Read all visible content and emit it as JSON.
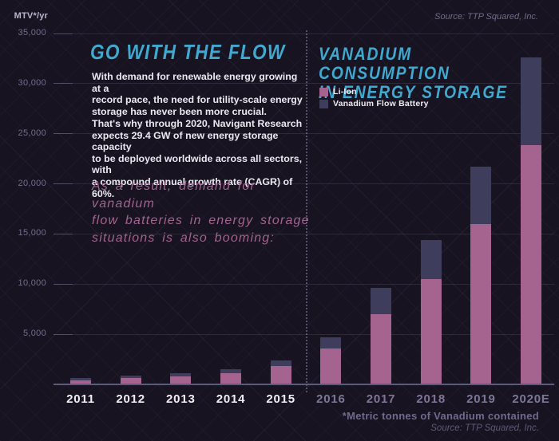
{
  "header": {
    "y_axis_unit": "MTV*/yr",
    "source": "Source: TTP Squared, Inc."
  },
  "intro": {
    "title": "GO WITH THE FLOW",
    "paragraph1": "With demand for renewable energy growing at a\nrecord pace, the need for utility-scale energy\nstorage has never been more crucial.",
    "paragraph2": "That's why through 2020, Navigant Research\nexpects 29.4 GW of new energy storage capacity\nto be deployed worldwide across all sectors, with\na compound annual growth rate (CAGR) of 60%.",
    "highlight": "As a result, demand for vanadium\nflow batteries in energy storage\nsituations is also booming:"
  },
  "chart_data": {
    "type": "bar",
    "stacked": true,
    "title": "VANADIUM CONSUMPTION\nIN ENERGY STORAGE",
    "ylabel": "MTV*/yr",
    "categories": [
      "2011",
      "2012",
      "2013",
      "2014",
      "2015",
      "2016",
      "2017",
      "2018",
      "2019",
      "2020E"
    ],
    "series": [
      {
        "name": "Li-Ion",
        "color": "#a4648f",
        "values": [
          400,
          600,
          800,
          1150,
          1800,
          3550,
          7000,
          10500,
          16000,
          23900
        ]
      },
      {
        "name": "Vanadium Flow Battery",
        "color": "#3e3d5b",
        "values": [
          200,
          250,
          300,
          400,
          550,
          1150,
          2600,
          3900,
          5700,
          8700
        ]
      }
    ],
    "totals": [
      600,
      850,
      1100,
      1550,
      2350,
      4700,
      9600,
      14400,
      21700,
      32600
    ],
    "ylim": [
      0,
      35000
    ],
    "yticks": [
      5000,
      10000,
      15000,
      20000,
      25000,
      30000,
      35000
    ],
    "ytick_labels": [
      "5,000",
      "10,000",
      "15,000",
      "20,000",
      "25,000",
      "30,000",
      "35,000"
    ],
    "grid": true,
    "legend_position": "top-right",
    "annotations": {
      "period_separator_between": [
        "2015",
        "2016"
      ]
    }
  },
  "footer": {
    "footnote": "*Metric tonnes of Vanadium contained",
    "source": "Source: TTP Squared, Inc."
  },
  "colors": {
    "background": "#171320",
    "accent_cyan": "#41a9cf",
    "li_ion_pink": "#a4648f",
    "vfb_slate": "#3e3d5b",
    "highlight_pink": "#a2648f",
    "year_label_past": "#f0eef5",
    "year_label_forecast": "#7b7896"
  }
}
